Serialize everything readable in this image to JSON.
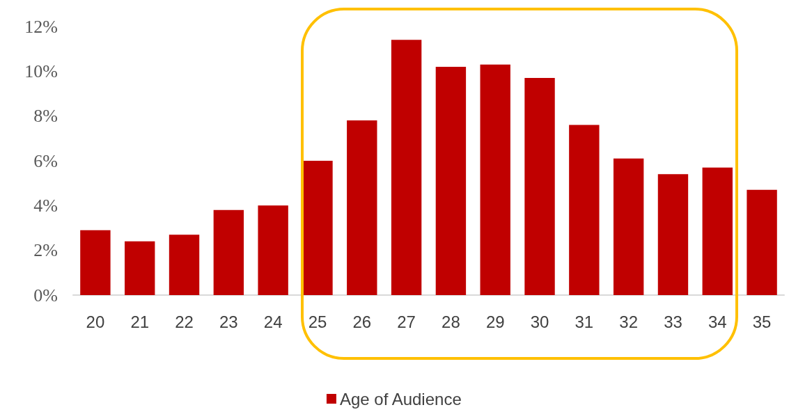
{
  "chart_data": {
    "type": "bar",
    "categories": [
      "20",
      "21",
      "22",
      "23",
      "24",
      "25",
      "26",
      "27",
      "28",
      "29",
      "30",
      "31",
      "32",
      "33",
      "34",
      "35"
    ],
    "series": [
      {
        "name": "Age of Audience",
        "color": "#c00000",
        "values": [
          2.9,
          2.4,
          2.7,
          3.8,
          4.0,
          6.0,
          7.8,
          11.4,
          10.2,
          10.3,
          9.7,
          7.6,
          6.1,
          5.4,
          5.7,
          4.7
        ]
      }
    ],
    "ylim": [
      0,
      12
    ],
    "yticks": [
      {
        "value": 0,
        "label": "0%"
      },
      {
        "value": 2,
        "label": "2%"
      },
      {
        "value": 4,
        "label": "4%"
      },
      {
        "value": 6,
        "label": "6%"
      },
      {
        "value": 8,
        "label": "8%"
      },
      {
        "value": 10,
        "label": "10%"
      },
      {
        "value": 12,
        "label": "12%"
      }
    ],
    "grid": false,
    "legend": "bottom"
  }
}
